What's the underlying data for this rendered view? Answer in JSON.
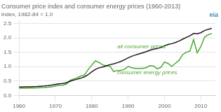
{
  "chart_data": {
    "type": "line",
    "title": "Consumer price index and consumer energy prices (1960-2013)",
    "subtitle": "index, 1982-84 = 1.0",
    "x": [
      1960,
      1961,
      1962,
      1963,
      1964,
      1965,
      1966,
      1967,
      1968,
      1969,
      1970,
      1971,
      1972,
      1973,
      1974,
      1975,
      1976,
      1977,
      1978,
      1979,
      1980,
      1981,
      1982,
      1983,
      1984,
      1985,
      1986,
      1987,
      1988,
      1989,
      1990,
      1991,
      1992,
      1993,
      1994,
      1995,
      1996,
      1997,
      1998,
      1999,
      2000,
      2001,
      2002,
      2003,
      2004,
      2005,
      2006,
      2007,
      2008,
      2009,
      2010,
      2011,
      2012,
      2013
    ],
    "series": [
      {
        "color": "#1a1a1a",
        "values": [
          0.293,
          0.296,
          0.3,
          0.304,
          0.308,
          0.313,
          0.322,
          0.332,
          0.346,
          0.364,
          0.386,
          0.403,
          0.416,
          0.442,
          0.49,
          0.535,
          0.566,
          0.603,
          0.648,
          0.721,
          0.82,
          0.905,
          0.96,
          0.99,
          1.03,
          1.07,
          1.096,
          1.136,
          1.183,
          1.24,
          1.307,
          1.362,
          1.403,
          1.445,
          1.482,
          1.524,
          1.569,
          1.605,
          1.63,
          1.666,
          1.722,
          1.771,
          1.799,
          1.84,
          1.889,
          1.953,
          2.016,
          2.073,
          2.153,
          2.145,
          2.18,
          2.255,
          2.296,
          2.33
        ]
      },
      {
        "color": "#4da832",
        "values": [
          0.253,
          0.252,
          0.254,
          0.257,
          0.26,
          0.265,
          0.271,
          0.277,
          0.288,
          0.303,
          0.33,
          0.35,
          0.358,
          0.39,
          0.52,
          0.572,
          0.611,
          0.68,
          0.711,
          0.9,
          1.055,
          1.2,
          1.148,
          1.063,
          1.03,
          1.02,
          0.835,
          0.863,
          0.872,
          0.905,
          1.01,
          0.962,
          0.94,
          0.94,
          0.94,
          0.97,
          1.035,
          1.025,
          0.925,
          0.975,
          1.165,
          1.11,
          1.01,
          1.115,
          1.22,
          1.42,
          1.5,
          1.54,
          1.94,
          1.48,
          1.7,
          2.02,
          2.11,
          2.15
        ]
      }
    ],
    "xlim": [
      1960,
      2014
    ],
    "xticks": [
      1960,
      1970,
      1980,
      1990,
      2000,
      2010
    ],
    "ylim": [
      0.0,
      2.6
    ],
    "yticks": [
      {
        "value": 0,
        "label": "0.0"
      },
      0.5,
      {
        "value": 1,
        "label": "1.0"
      },
      1.5,
      {
        "value": 2,
        "label": "2.0"
      },
      2.5
    ],
    "grid": true,
    "annotations": [
      {
        "text": "all consumer prices",
        "x": 1987,
        "y": 1.64,
        "color": "#4da832"
      },
      {
        "text": "consumer energy prices",
        "x": 1987,
        "y": 0.75,
        "color": "#4da832"
      },
      {
        "text": "eia",
        "color": "#4488aa"
      }
    ]
  }
}
